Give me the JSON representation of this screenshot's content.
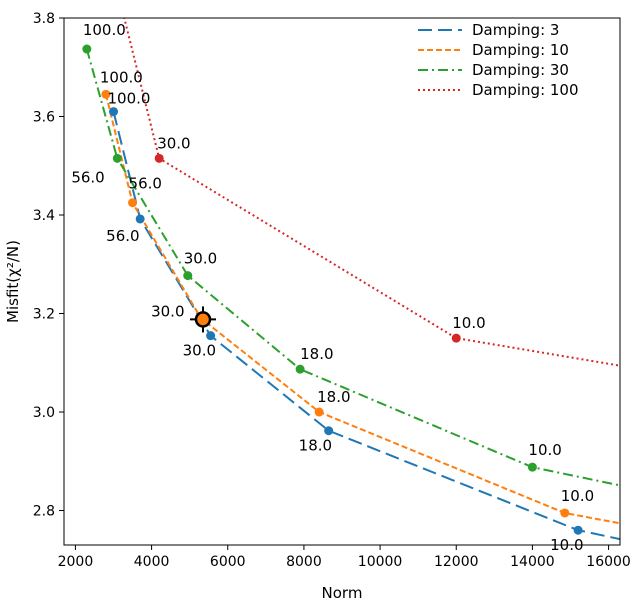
{
  "chart_data": {
    "type": "line",
    "xlabel": "Norm",
    "ylabel": "Misfit(χ²/N)",
    "xlim": [
      1700,
      16300
    ],
    "ylim": [
      2.73,
      3.8
    ],
    "xticks": [
      2000,
      4000,
      6000,
      8000,
      10000,
      12000,
      14000,
      16000
    ],
    "yticks": [
      2.8,
      3.0,
      3.2,
      3.4,
      3.6,
      3.8
    ],
    "xtick_labels": [
      "2000",
      "4000",
      "6000",
      "8000",
      "10000",
      "12000",
      "14000",
      "16000"
    ],
    "ytick_labels": [
      "2.8",
      "3.0",
      "3.2",
      "3.4",
      "3.6",
      "3.8"
    ],
    "grid": false,
    "legend_position": "top-right",
    "series": [
      {
        "name": "Damping: 3",
        "color": "#1f77b4",
        "style": "dashed-long",
        "line": [
          [
            3000,
            3.61
          ],
          [
            3700,
            3.392
          ],
          [
            5550,
            3.155
          ],
          [
            8650,
            2.962
          ],
          [
            15200,
            2.76
          ],
          [
            16300,
            2.742
          ]
        ],
        "points": [
          [
            3000,
            3.61
          ],
          [
            3700,
            3.392
          ],
          [
            5550,
            3.155
          ],
          [
            8650,
            2.962
          ],
          [
            15200,
            2.76
          ]
        ],
        "labels": [
          "",
          "56.0",
          "30.0",
          "18.0",
          "10.0"
        ]
      },
      {
        "name": "Damping: 10",
        "color": "#ff7f0e",
        "style": "dashed-short",
        "line": [
          [
            2800,
            3.645
          ],
          [
            3500,
            3.425
          ],
          [
            5300,
            3.19
          ],
          [
            8400,
            3.0
          ],
          [
            14850,
            2.795
          ],
          [
            16300,
            2.774
          ]
        ],
        "points": [
          [
            2800,
            3.645
          ],
          [
            3500,
            3.425
          ],
          [
            5300,
            3.19
          ],
          [
            8400,
            3.0
          ],
          [
            14850,
            2.795
          ]
        ],
        "labels": [
          "100.0",
          "56.0",
          "30.0",
          "18.0",
          "10.0"
        ]
      },
      {
        "name": "Damping: 30",
        "color": "#2ca02c",
        "style": "dashdot",
        "line": [
          [
            2300,
            3.737
          ],
          [
            3100,
            3.515
          ],
          [
            4950,
            3.277
          ],
          [
            7900,
            3.087
          ],
          [
            14000,
            2.888
          ],
          [
            16300,
            2.851
          ]
        ],
        "points": [
          [
            2300,
            3.737
          ],
          [
            3100,
            3.515
          ],
          [
            4950,
            3.277
          ],
          [
            7900,
            3.087
          ],
          [
            14000,
            2.888
          ]
        ],
        "labels": [
          "100.0",
          "56.0",
          "30.0",
          "18.0",
          "10.0"
        ]
      },
      {
        "name": "Damping: 100",
        "color": "#d62728",
        "style": "dotted",
        "line": [
          [
            2800,
            3.95
          ],
          [
            4200,
            3.515
          ],
          [
            12000,
            3.15
          ],
          [
            16300,
            3.094
          ]
        ],
        "points": [
          [
            4200,
            3.515
          ],
          [
            12000,
            3.15
          ]
        ],
        "labels": [
          "30.0",
          "10.0"
        ]
      }
    ],
    "extra_labels": [
      {
        "text": "100.0",
        "x": 3000,
        "y": 3.61
      }
    ],
    "highlight": {
      "x": 5350,
      "y": 3.188
    }
  }
}
